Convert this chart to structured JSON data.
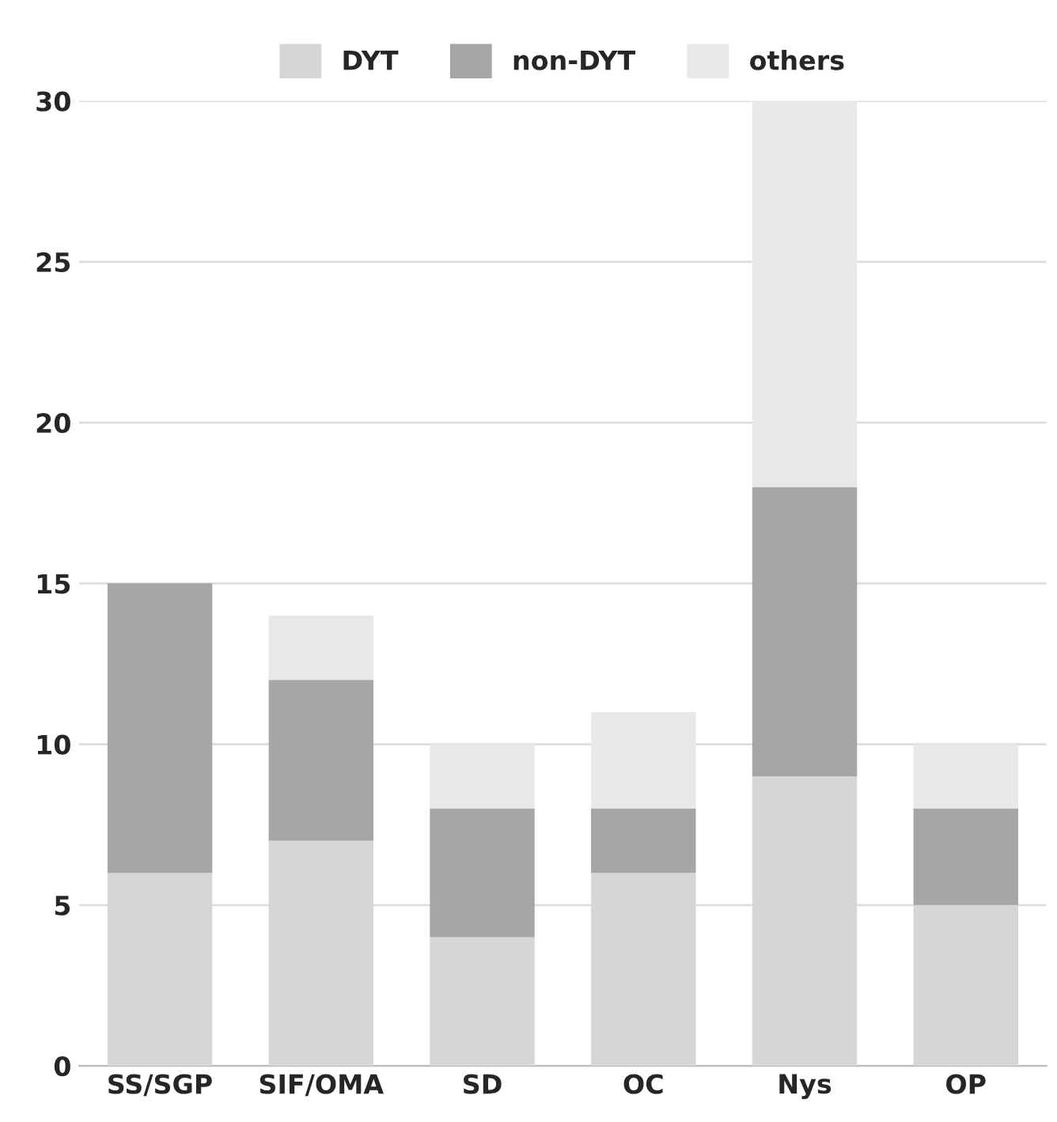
{
  "chart_data": {
    "type": "bar",
    "stacked": true,
    "categories": [
      "SS/SGP",
      "SIF/OMA",
      "SD",
      "OC",
      "Nys",
      "OP"
    ],
    "series": [
      {
        "name": "DYT",
        "color": "#d6d6d6",
        "values": [
          6,
          7,
          4,
          6,
          9,
          5
        ]
      },
      {
        "name": "non-DYT",
        "color": "#a6a6a6",
        "values": [
          9,
          5,
          4,
          2,
          9,
          3
        ]
      },
      {
        "name": "others",
        "color": "#e8e8e8",
        "values": [
          0,
          2,
          2,
          3,
          12,
          2
        ]
      }
    ],
    "ylim": [
      0,
      30
    ],
    "yticks": [
      0,
      5,
      10,
      15,
      20,
      25,
      30
    ],
    "grid": "y",
    "legend": "top"
  }
}
